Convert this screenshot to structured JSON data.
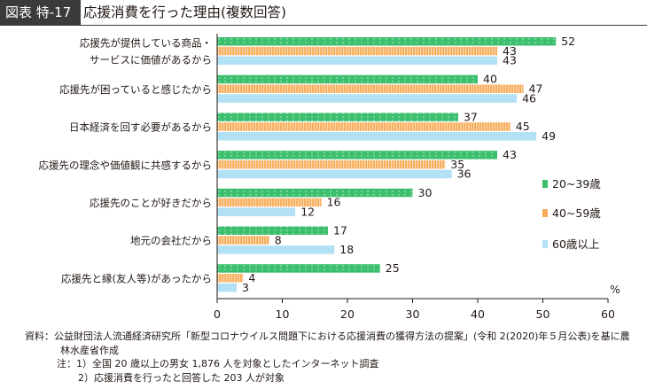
{
  "header": {
    "figure_label": "図表 特-17",
    "title": "応援消費を行った理由(複数回答)"
  },
  "colors": {
    "series_20_39": "#3cbf6e",
    "series_40_59": "#f7aa56",
    "series_60_plus": "#b2e0f5",
    "axis": "#231815",
    "label_bg": "#3b3b3b"
  },
  "chart_data": {
    "type": "bar",
    "orientation": "horizontal",
    "categories": [
      [
        "応援先が提供している商品・",
        "サービスに価値があるから"
      ],
      [
        "応援先が困っていると感じたから"
      ],
      [
        "日本経済を回す必要があるから"
      ],
      [
        "応援先の理念や価値観に共感するから"
      ],
      [
        "応援先のことが好きだから"
      ],
      [
        "地元の会社だから"
      ],
      [
        "応援先と縁(友人等)があったから"
      ]
    ],
    "series": [
      {
        "name": "20~39歳",
        "values": [
          52,
          40,
          37,
          43,
          30,
          17,
          25
        ]
      },
      {
        "name": "40~59歳",
        "values": [
          43,
          47,
          45,
          35,
          16,
          8,
          4
        ]
      },
      {
        "name": "60歳以上",
        "values": [
          43,
          46,
          49,
          36,
          12,
          18,
          3
        ]
      }
    ],
    "xlim": [
      0,
      60
    ],
    "xticks": [
      0,
      10,
      20,
      30,
      40,
      50,
      60
    ],
    "unit": "%",
    "legend_position": "right",
    "grid": false
  },
  "notes": {
    "source_line1": "資料：公益財団法人流通経済研究所「新型コロナウイルス問題下における応援消費の獲得方法の提案」(令和 2(2020)年５月公表)を基に農",
    "source_line2": "林水産省作成",
    "note1": "注：1）全国 20 歳以上の男女 1,876 人を対象としたインターネット調査",
    "note2": "2）応援消費を行ったと回答した 203 人が対象"
  }
}
